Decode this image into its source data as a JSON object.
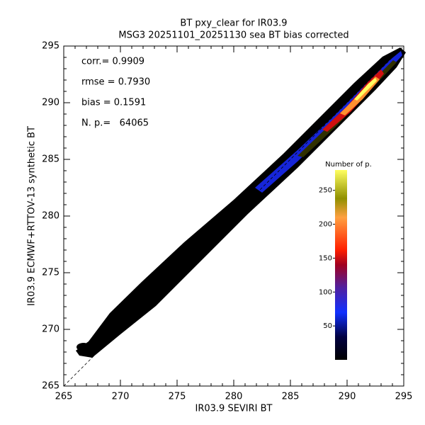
{
  "chart_data": {
    "type": "density-scatter",
    "title": "BT pxy_clear for IR03.9",
    "subtitle": "MSG3 20251101_20251130 sea BT bias corrected",
    "x_label": "IR03.9 SEVIRI BT",
    "y_label": "IR03.9 ECMWF+RTTOV-13 synthetic BT",
    "xlim": [
      265,
      295
    ],
    "xticks": [
      265,
      270,
      275,
      280,
      285,
      290,
      295
    ],
    "ylim": [
      265,
      295
    ],
    "yticks": [
      265,
      270,
      275,
      280,
      285,
      290,
      295
    ],
    "annotations": [
      "corr.= 0.9909",
      "rmse = 0.7930",
      "bias = 0.1591",
      "N. p.=   64065"
    ],
    "colorbar": {
      "title": "Number of p.",
      "clim": [
        0,
        280
      ],
      "ticks": [
        50,
        100,
        150,
        200,
        250
      ]
    }
  }
}
